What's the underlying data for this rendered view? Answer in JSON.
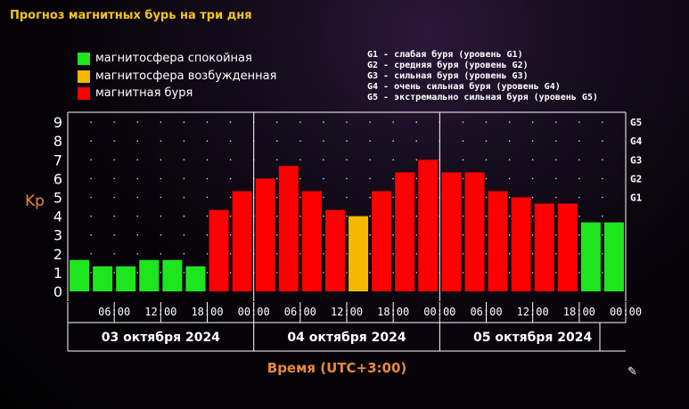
{
  "title": "Прогноз магнитных бурь на три дня",
  "legend": [
    {
      "label": "магнитосфера спокойная",
      "color": "#1ee61e"
    },
    {
      "label": "магнитосфера возбужденная",
      "color": "#f5b800"
    },
    {
      "label": "магнитная буря",
      "color": "#ff0000"
    }
  ],
  "storm_levels": [
    "G1 - слабая буря (уровень G1)",
    "G2 - средняя буря (уровень G2)",
    "G3 - сильная буря (уровень G3)",
    "G4 - очень сильная буря (уровень G4)",
    "G5 - экстремально сильная буря (уровень G5)"
  ],
  "corner_icon": "pencil-icon",
  "chart_data": {
    "type": "bar",
    "ylabel": "Kp",
    "xlabel": "Время (UTC+3:00)",
    "ylim": [
      0,
      9
    ],
    "y_ticks": [
      "0",
      "1",
      "2",
      "3",
      "4",
      "5",
      "6",
      "7",
      "8",
      "9"
    ],
    "right_ticks": [
      {
        "label": "G1",
        "value": 5
      },
      {
        "label": "G2",
        "value": 6
      },
      {
        "label": "G3",
        "value": 7
      },
      {
        "label": "G4",
        "value": 8
      },
      {
        "label": "G5",
        "value": 9
      }
    ],
    "x_tick_labels": [
      "06:00",
      "12:00",
      "18:00",
      "00:00",
      "06:00",
      "12:00",
      "18:00",
      "00:00",
      "06:00",
      "12:00",
      "18:00",
      "00:00"
    ],
    "days": [
      "03 октября 2024",
      "04 октября 2024",
      "05 октября 2024"
    ],
    "bars_per_day": 8,
    "values": [
      1.67,
      1.33,
      1.33,
      1.67,
      1.67,
      1.33,
      4.33,
      5.33,
      6.0,
      6.67,
      5.33,
      4.33,
      4.0,
      5.33,
      6.33,
      7.0,
      6.33,
      6.33,
      5.33,
      5.0,
      4.67,
      4.67,
      3.67,
      3.67
    ],
    "levels": [
      "quiet",
      "quiet",
      "quiet",
      "quiet",
      "quiet",
      "quiet",
      "storm",
      "storm",
      "storm",
      "storm",
      "storm",
      "storm",
      "active",
      "storm",
      "storm",
      "storm",
      "storm",
      "storm",
      "storm",
      "storm",
      "storm",
      "storm",
      "quiet",
      "quiet"
    ],
    "level_colors": {
      "quiet": "#1ee61e",
      "active": "#f5b800",
      "storm": "#ff0000"
    },
    "grid": true
  }
}
